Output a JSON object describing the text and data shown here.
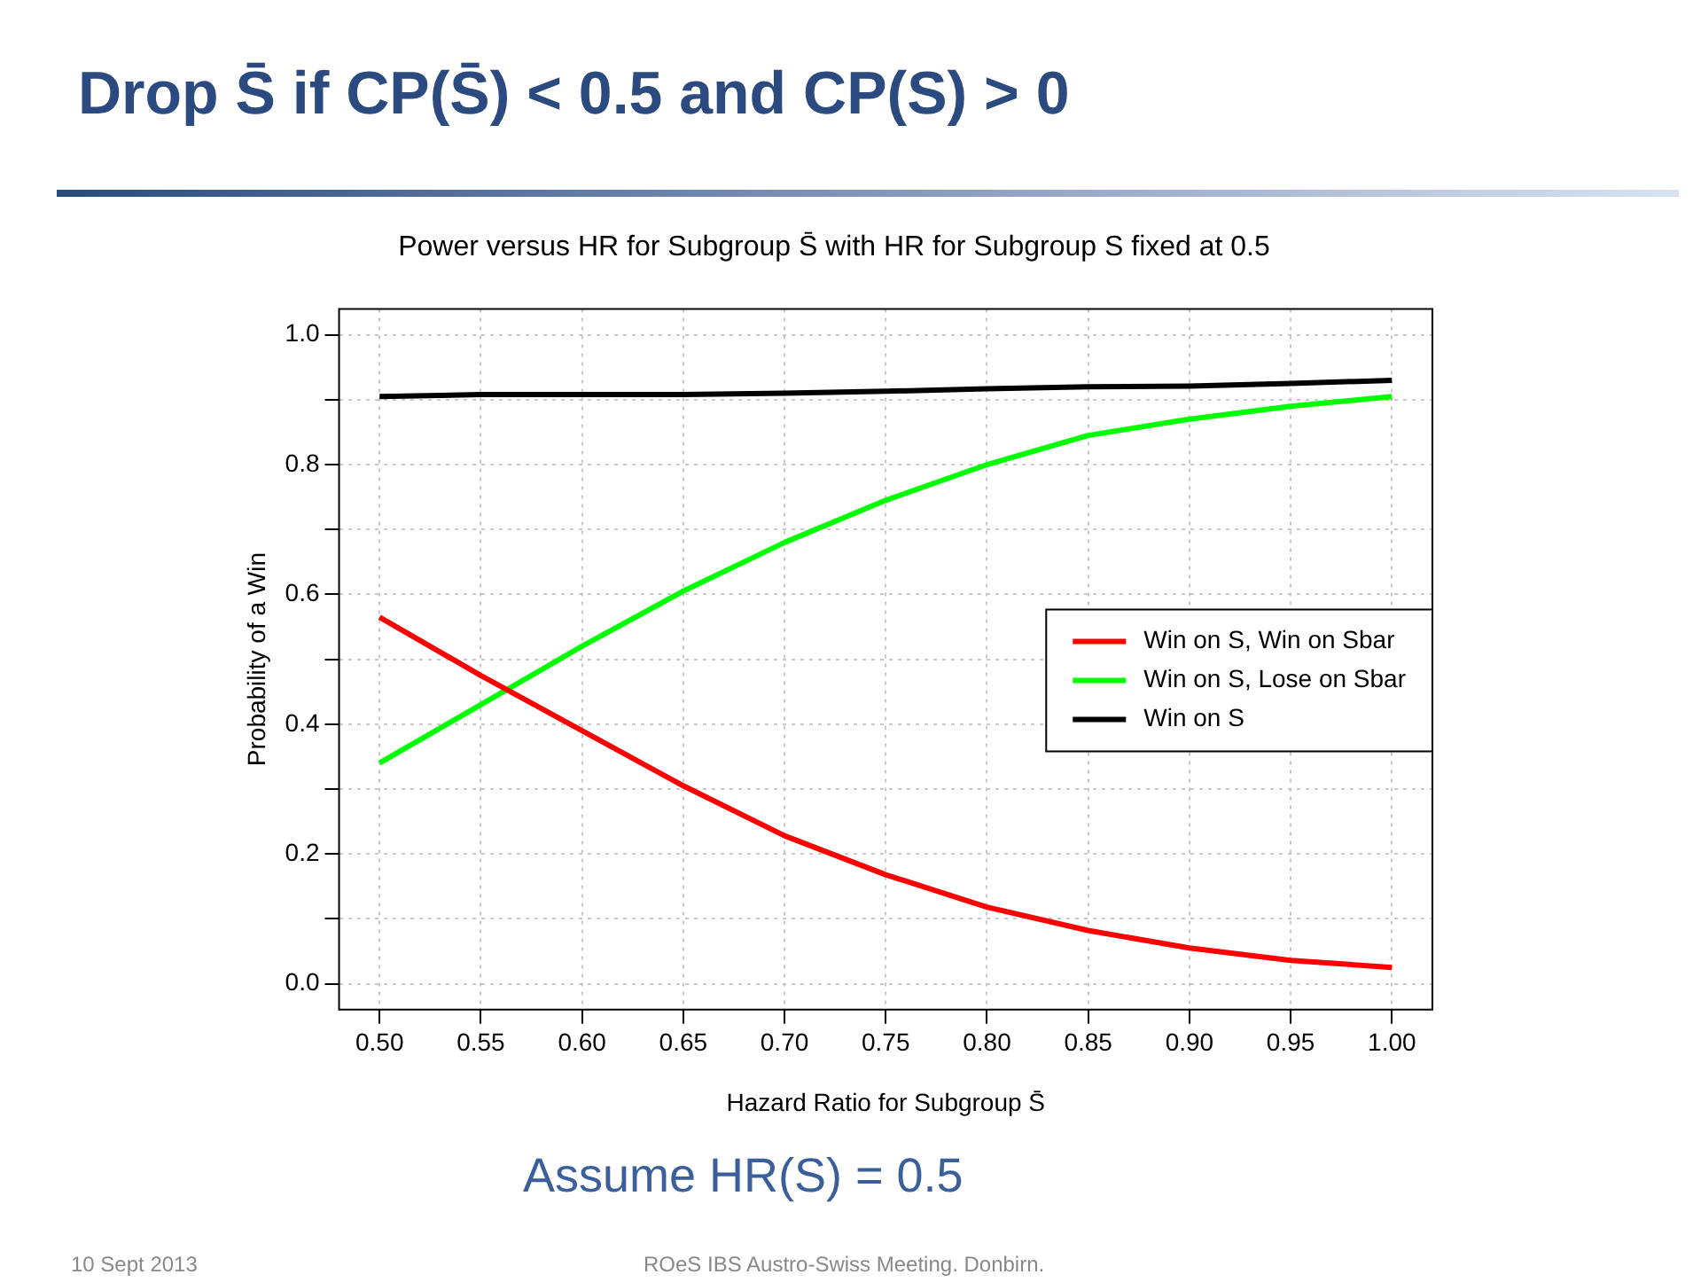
{
  "chart_data": {
    "type": "line",
    "title": "Power versus HR for Subgroup S̄ with HR for Subgroup S fixed at 0.5",
    "xlabel": "Hazard Ratio for Subgroup S̄",
    "ylabel": "Probability of a Win",
    "annotations": [
      "Drop S̄ if CP(S̄) < 0.5 and CP(S) > 0",
      "Assume HR(S) = 0.5",
      "10 Sept 2013",
      "ROeS IBS Austro-Swiss Meeting. Donbirn."
    ],
    "x": [
      0.5,
      0.55,
      0.6,
      0.65,
      0.7,
      0.75,
      0.8,
      0.85,
      0.9,
      0.95,
      1.0
    ],
    "series": [
      {
        "name": "Win on S, Win on Sbar",
        "color": "#ff0000",
        "values": [
          0.565,
          0.475,
          0.39,
          0.305,
          0.228,
          0.168,
          0.118,
          0.082,
          0.055,
          0.036,
          0.025
        ]
      },
      {
        "name": "Win on S, Lose on Sbar",
        "color": "#00ff00",
        "values": [
          0.34,
          0.43,
          0.52,
          0.605,
          0.68,
          0.745,
          0.8,
          0.845,
          0.87,
          0.89,
          0.905
        ]
      },
      {
        "name": "Win on S",
        "color": "#000000",
        "values": [
          0.905,
          0.908,
          0.908,
          0.908,
          0.91,
          0.913,
          0.917,
          0.92,
          0.921,
          0.925,
          0.93
        ]
      }
    ],
    "xlim": [
      0.48,
      1.02
    ],
    "xticks": [
      {
        "value": 0.5,
        "label": "0.50"
      },
      {
        "value": 0.55,
        "label": "0.55"
      },
      {
        "value": 0.6,
        "label": "0.60"
      },
      {
        "value": 0.65,
        "label": "0.65"
      },
      {
        "value": 0.7,
        "label": "0.70"
      },
      {
        "value": 0.75,
        "label": "0.75"
      },
      {
        "value": 0.8,
        "label": "0.80"
      },
      {
        "value": 0.85,
        "label": "0.85"
      },
      {
        "value": 0.9,
        "label": "0.90"
      },
      {
        "value": 0.95,
        "label": "0.95"
      },
      {
        "value": 1.0,
        "label": "1.00"
      }
    ],
    "ylim": [
      -0.04,
      1.04
    ],
    "yticks": [
      {
        "value": 0,
        "label": "0.0"
      },
      {
        "value": 0.1,
        "label": null
      },
      {
        "value": 0.2,
        "label": "0.2"
      },
      {
        "value": 0.3,
        "label": null
      },
      {
        "value": 0.4,
        "label": "0.4"
      },
      {
        "value": 0.5,
        "label": null
      },
      {
        "value": 0.6,
        "label": "0.6"
      },
      {
        "value": 0.7,
        "label": null
      },
      {
        "value": 0.8,
        "label": "0.8"
      },
      {
        "value": 0.9,
        "label": null
      },
      {
        "value": 1.0,
        "label": "1.0"
      }
    ],
    "grid": true,
    "legend": "right",
    "marker": "none",
    "line_style": "solid"
  }
}
